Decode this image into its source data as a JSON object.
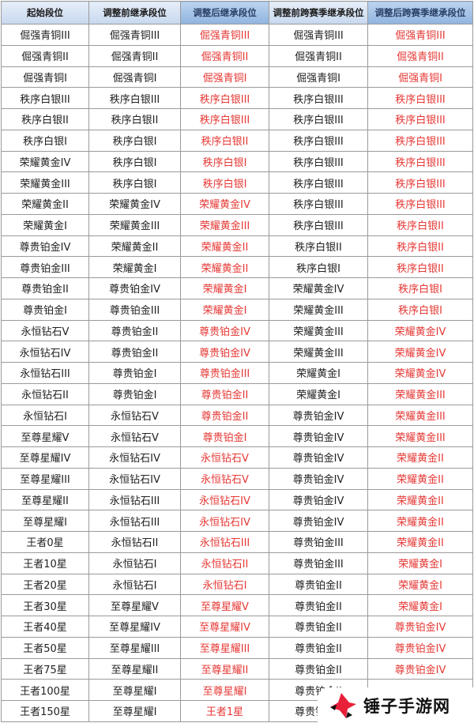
{
  "headers": [
    "起始段位",
    "调整前继承段位",
    "调整后继承段位",
    "调整前跨赛季继承段位",
    "调整后跨赛季继承段位"
  ],
  "rows": [
    [
      "倔强青铜III",
      "倔强青铜III",
      "倔强青铜III",
      "倔强青铜III",
      "倔强青铜III"
    ],
    [
      "倔强青铜II",
      "倔强青铜II",
      "倔强青铜II",
      "倔强青铜II",
      "倔强青铜II"
    ],
    [
      "倔强青铜I",
      "倔强青铜I",
      "倔强青铜I",
      "倔强青铜I",
      "倔强青铜I"
    ],
    [
      "秩序白银III",
      "秩序白银III",
      "秩序白银III",
      "秩序白银III",
      "秩序白银III"
    ],
    [
      "秩序白银II",
      "秩序白银II",
      "秩序白银III",
      "秩序白银III",
      "秩序白银III"
    ],
    [
      "秩序白银I",
      "秩序白银I",
      "秩序白银II",
      "秩序白银III",
      "秩序白银III"
    ],
    [
      "荣耀黄金IV",
      "秩序白银I",
      "秩序白银I",
      "秩序白银III",
      "秩序白银III"
    ],
    [
      "荣耀黄金III",
      "秩序白银I",
      "秩序白银I",
      "秩序白银III",
      "秩序白银III"
    ],
    [
      "荣耀黄金II",
      "荣耀黄金IV",
      "荣耀黄金IV",
      "秩序白银III",
      "秩序白银III"
    ],
    [
      "荣耀黄金I",
      "荣耀黄金III",
      "荣耀黄金III",
      "秩序白银III",
      "秩序白银II"
    ],
    [
      "尊贵铂金IV",
      "荣耀黄金II",
      "荣耀黄金II",
      "秩序白银II",
      "秩序白银II"
    ],
    [
      "尊贵铂金III",
      "荣耀黄金I",
      "荣耀黄金II",
      "秩序白银I",
      "秩序白银II"
    ],
    [
      "尊贵铂金II",
      "尊贵铂金IV",
      "荣耀黄金I",
      "荣耀黄金IV",
      "秩序白银I"
    ],
    [
      "尊贵铂金I",
      "尊贵铂金III",
      "荣耀黄金I",
      "荣耀黄金III",
      "秩序白银I"
    ],
    [
      "永恒钻石V",
      "尊贵铂金II",
      "尊贵铂金IV",
      "荣耀黄金III",
      "荣耀黄金IV"
    ],
    [
      "永恒钻石IV",
      "尊贵铂金II",
      "尊贵铂金IV",
      "荣耀黄金III",
      "荣耀黄金IV"
    ],
    [
      "永恒钻石III",
      "尊贵铂金I",
      "尊贵铂金III",
      "荣耀黄金I",
      "荣耀黄金IV"
    ],
    [
      "永恒钻石II",
      "尊贵铂金I",
      "尊贵铂金II",
      "荣耀黄金I",
      "荣耀黄金III"
    ],
    [
      "永恒钻石I",
      "永恒钻石V",
      "尊贵铂金II",
      "尊贵铂金IV",
      "荣耀黄金III"
    ],
    [
      "至尊星耀V",
      "永恒钻石V",
      "尊贵铂金I",
      "尊贵铂金IV",
      "荣耀黄金III"
    ],
    [
      "至尊星耀IV",
      "永恒钻石IV",
      "永恒钻石V",
      "尊贵铂金IV",
      "荣耀黄金II"
    ],
    [
      "至尊星耀III",
      "永恒钻石IV",
      "永恒钻石V",
      "尊贵铂金IV",
      "荣耀黄金II"
    ],
    [
      "至尊星耀II",
      "永恒钻石III",
      "永恒钻石IV",
      "尊贵铂金IV",
      "荣耀黄金II"
    ],
    [
      "至尊星耀I",
      "永恒钻石III",
      "永恒钻石IV",
      "尊贵铂金IV",
      "荣耀黄金II"
    ],
    [
      "王者0星",
      "永恒钻石II",
      "永恒钻石III",
      "尊贵铂金III",
      "荣耀黄金II"
    ],
    [
      "王者10星",
      "永恒钻石I",
      "永恒钻石II",
      "尊贵铂金III",
      "荣耀黄金I"
    ],
    [
      "王者20星",
      "永恒钻石I",
      "永恒钻石I",
      "尊贵铂金II",
      "荣耀黄金I"
    ],
    [
      "王者30星",
      "至尊星耀V",
      "至尊星耀V",
      "尊贵铂金II",
      "荣耀黄金I"
    ],
    [
      "王者40星",
      "至尊星耀IV",
      "至尊星耀IV",
      "尊贵铂金II",
      "尊贵铂金IV"
    ],
    [
      "王者50星",
      "至尊星耀III",
      "至尊星耀III",
      "尊贵铂金II",
      "尊贵铂金IV"
    ],
    [
      "王者75星",
      "至尊星耀II",
      "至尊星耀II",
      "尊贵铂金II",
      "尊贵铂金IV"
    ],
    [
      "王者100星",
      "至尊星耀I",
      "至尊星耀I",
      "尊贵铂金II",
      ""
    ],
    [
      "王者150星",
      "至尊星耀I",
      "王者1星",
      "尊贵铂金II",
      ""
    ]
  ],
  "watermark": {
    "text": "锤子手游网",
    "accent": "#e8203a"
  }
}
